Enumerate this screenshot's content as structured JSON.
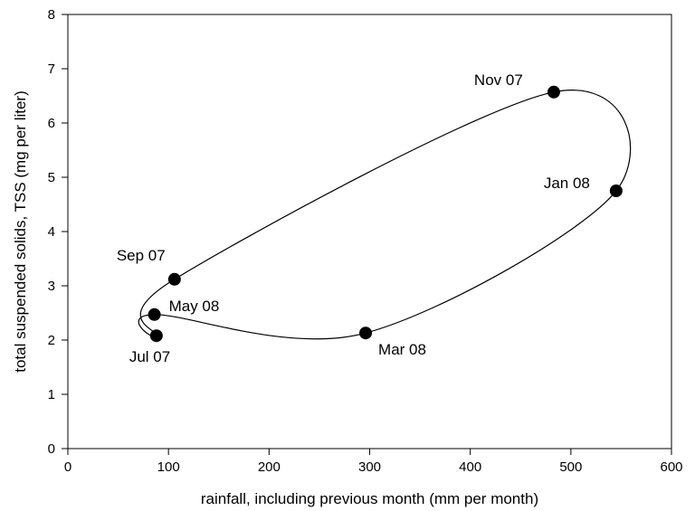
{
  "chart_data": {
    "type": "scatter",
    "title": "",
    "xlabel": "rainfall, including previous month (mm per month)",
    "ylabel": "total suspended solids, TSS (mg per liter)",
    "xlim": [
      0,
      600
    ],
    "ylim": [
      0,
      8
    ],
    "xticks": [
      "0",
      "100",
      "200",
      "300",
      "400",
      "500",
      "600"
    ],
    "yticks": [
      "0",
      "1",
      "2",
      "3",
      "4",
      "5",
      "6",
      "7",
      "8"
    ],
    "grid": false,
    "points": [
      {
        "label": "Jul 07",
        "x": 88,
        "y": 2.08
      },
      {
        "label": "Sep 07",
        "x": 106,
        "y": 3.12
      },
      {
        "label": "Nov 07",
        "x": 483,
        "y": 6.57
      },
      {
        "label": "Jan 08",
        "x": 545,
        "y": 4.75
      },
      {
        "label": "Mar 08",
        "x": 296,
        "y": 2.13
      },
      {
        "label": "May 08",
        "x": 86,
        "y": 2.47
      }
    ]
  }
}
